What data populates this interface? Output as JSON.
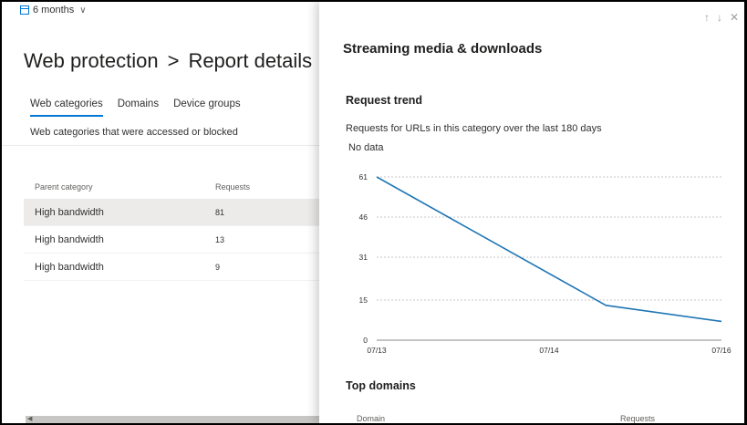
{
  "period": {
    "label": "6 months"
  },
  "header": {
    "title": "Web protection",
    "separator": ">",
    "subtitle": "Report details"
  },
  "tabs": [
    {
      "label": "Web categories",
      "active": true
    },
    {
      "label": "Domains",
      "active": false
    },
    {
      "label": "Device groups",
      "active": false
    }
  ],
  "tab_description": "Web categories that were accessed or blocked",
  "table": {
    "columns": [
      "Parent category",
      "Requests"
    ],
    "rows": [
      {
        "category": "High bandwidth",
        "requests": "81"
      },
      {
        "category": "High bandwidth",
        "requests": "13"
      },
      {
        "category": "High bandwidth",
        "requests": "9"
      }
    ]
  },
  "panel": {
    "title": "Streaming media & downloads",
    "request_trend": {
      "title": "Request trend",
      "subtitle": "Requests for URLs in this category over the last 180 days",
      "nodata": "No data"
    },
    "top_domains": {
      "title": "Top domains",
      "columns": [
        "Domain",
        "Requests"
      ]
    },
    "nav": {
      "up_icon": "arrow-up-icon",
      "down_icon": "arrow-down-icon",
      "close_icon": "close-icon"
    }
  },
  "chart_data": {
    "type": "line",
    "x": [
      "07/13",
      "07/14",
      "07/16"
    ],
    "x_ticks": [
      "07/13",
      "07/14",
      "07/16"
    ],
    "y_ticks": [
      0,
      15,
      31,
      46,
      61
    ],
    "ylim": [
      0,
      61
    ],
    "series": [
      {
        "points": [
          {
            "x": 0,
            "y": 61
          },
          {
            "x": 1.33,
            "y": 13
          },
          {
            "x": 2,
            "y": 7
          }
        ]
      }
    ],
    "grid": true,
    "line_color": "#1f77b4"
  }
}
